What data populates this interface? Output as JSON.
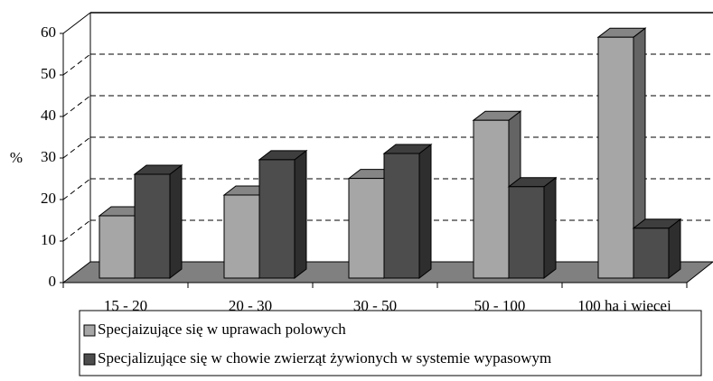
{
  "chart_data": {
    "type": "bar3d",
    "y_label": "%",
    "categories": [
      "15 - 20",
      "20 - 30",
      "30 - 50",
      "50 - 100",
      "100 ha i więcej"
    ],
    "series": [
      {
        "name": "Specjaizujące się w uprawach polowych",
        "color": "#a6a6a6",
        "values": [
          15,
          20,
          24,
          38,
          58
        ]
      },
      {
        "name": "Specjalizujące się w chowie zwierząt żywionych w systemie wypasowym",
        "color": "#4d4d4d",
        "values": [
          25,
          28.5,
          30,
          22,
          12
        ]
      }
    ],
    "ylim": [
      0,
      60
    ],
    "yticks": [
      0,
      10,
      20,
      30,
      40,
      50,
      60
    ],
    "grid": true
  }
}
